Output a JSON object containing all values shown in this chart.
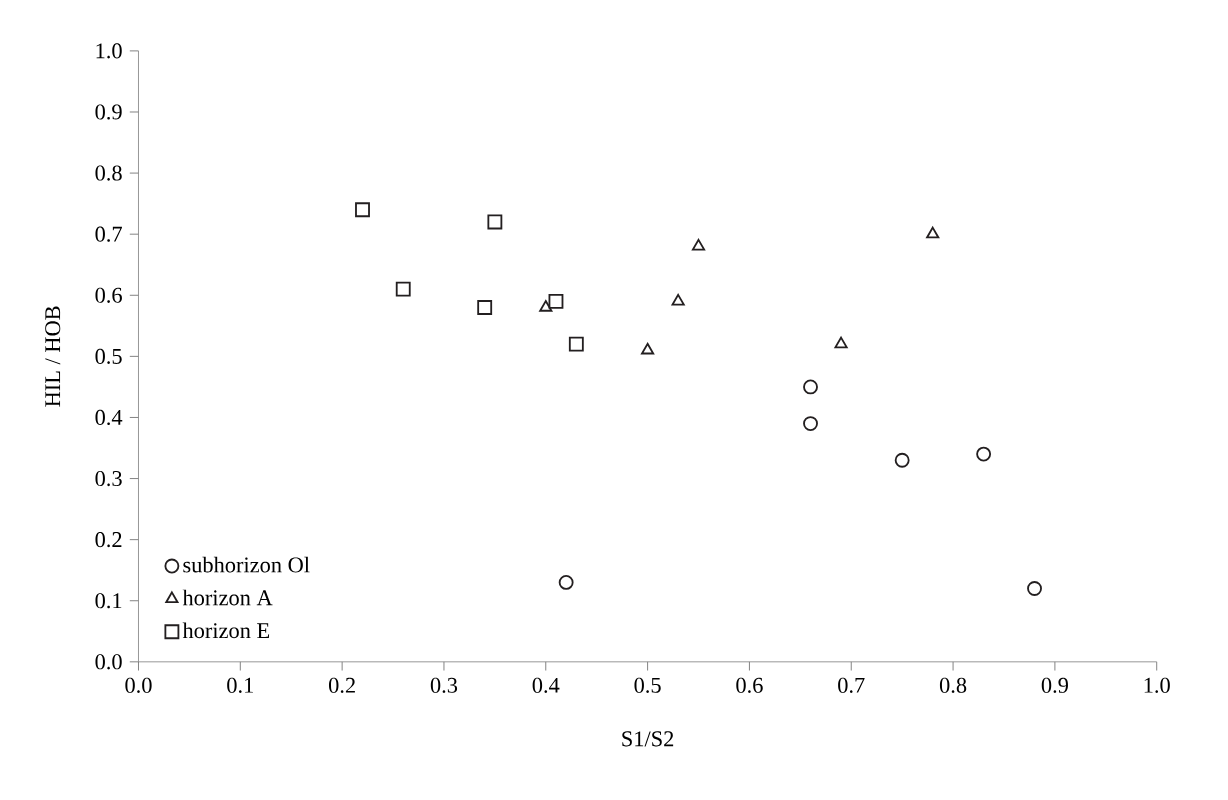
{
  "chart_data": {
    "type": "scatter",
    "xlabel": "S1/S2",
    "ylabel": "HIL / HOB",
    "xlim": [
      0,
      1
    ],
    "ylim": [
      0,
      1
    ],
    "xticks": [
      {
        "value": 0,
        "label": "0.0"
      },
      {
        "value": 0.1,
        "label": "0.1"
      },
      {
        "value": 0.2,
        "label": "0.2"
      },
      {
        "value": 0.3,
        "label": "0.3"
      },
      {
        "value": 0.4,
        "label": "0.4"
      },
      {
        "value": 0.5,
        "label": "0.5"
      },
      {
        "value": 0.6,
        "label": "0.6"
      },
      {
        "value": 0.7,
        "label": "0.7"
      },
      {
        "value": 0.8,
        "label": "0.8"
      },
      {
        "value": 0.9,
        "label": "0.9"
      },
      {
        "value": 1,
        "label": "1.0"
      }
    ],
    "yticks": [
      {
        "value": 0,
        "label": "0.0"
      },
      {
        "value": 0.1,
        "label": "0.1"
      },
      {
        "value": 0.2,
        "label": "0.2"
      },
      {
        "value": 0.3,
        "label": "0.3"
      },
      {
        "value": 0.4,
        "label": "0.4"
      },
      {
        "value": 0.5,
        "label": "0.5"
      },
      {
        "value": 0.6,
        "label": "0.6"
      },
      {
        "value": 0.7,
        "label": "0.7"
      },
      {
        "value": 0.8,
        "label": "0.8"
      },
      {
        "value": 0.9,
        "label": "0.9"
      },
      {
        "value": 1,
        "label": "1.0"
      }
    ],
    "legend": "bottom left",
    "grid": false,
    "series": [
      {
        "name": "subhorizon Ol",
        "color": "#231f20",
        "marker": "circle",
        "x": [
          0.42,
          0.66,
          0.66,
          0.75,
          0.83,
          0.88
        ],
        "values": [
          0.13,
          0.45,
          0.39,
          0.33,
          0.34,
          0.12
        ]
      },
      {
        "name": "horizon A",
        "color": "#231f20",
        "marker": "triangle",
        "x": [
          0.4,
          0.5,
          0.53,
          0.55,
          0.69,
          0.78
        ],
        "values": [
          0.58,
          0.51,
          0.59,
          0.68,
          0.52,
          0.7
        ]
      },
      {
        "name": "horizon E",
        "color": "#231f20",
        "marker": "square",
        "x": [
          0.22,
          0.35,
          0.26,
          0.34,
          0.41,
          0.43
        ],
        "values": [
          0.74,
          0.72,
          0.61,
          0.58,
          0.59,
          0.52
        ]
      }
    ]
  }
}
